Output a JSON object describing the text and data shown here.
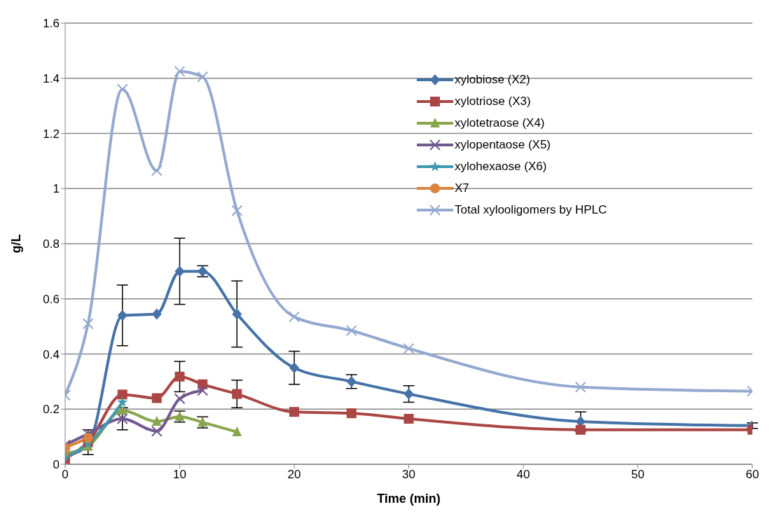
{
  "chart_data": {
    "type": "line",
    "xlabel": "Time (min)",
    "ylabel": "g/L",
    "xlim": [
      0,
      60
    ],
    "xticks": [
      0,
      10,
      20,
      30,
      40,
      50,
      60
    ],
    "ylim": [
      0,
      1.6
    ],
    "yticks": [
      0,
      0.2,
      0.4,
      0.6,
      0.8,
      1,
      1.2,
      1.4,
      1.6
    ],
    "grid": "y",
    "legend": "top right",
    "series": [
      {
        "name": "xylobiose (X2)",
        "color": "#4572a7",
        "marker": "diamond",
        "x": [
          0,
          2,
          5,
          8,
          10,
          12,
          15,
          20,
          25,
          30,
          45,
          60
        ],
        "values": [
          0.03,
          0.07,
          0.54,
          0.545,
          0.7,
          0.7,
          0.545,
          0.35,
          0.3,
          0.255,
          0.155,
          0.14
        ],
        "errors": [
          null,
          null,
          0.11,
          null,
          0.12,
          0.02,
          0.12,
          0.06,
          0.025,
          0.03,
          0.035,
          0.01
        ]
      },
      {
        "name": "xylotriose (X3)",
        "color": "#aa4643",
        "marker": "square",
        "x": [
          0,
          2,
          5,
          8,
          10,
          12,
          15,
          20,
          25,
          30,
          45,
          60
        ],
        "values": [
          0.02,
          0.08,
          0.253,
          0.24,
          0.318,
          0.29,
          0.255,
          0.19,
          0.185,
          0.165,
          0.125,
          0.125
        ],
        "errors": [
          null,
          0.045,
          null,
          null,
          0.055,
          null,
          0.05,
          null,
          null,
          null,
          null,
          null
        ]
      },
      {
        "name": "xylotetraose (X4)",
        "color": "#89a54e",
        "marker": "triangle",
        "x": [
          0,
          2,
          5,
          8,
          10,
          12,
          15
        ],
        "values": [
          0.04,
          0.065,
          0.195,
          0.155,
          0.173,
          0.152,
          0.117
        ],
        "errors": [
          null,
          null,
          null,
          null,
          0.02,
          0.02,
          null
        ]
      },
      {
        "name": "xylopentaose (X5)",
        "color": "#71588f",
        "marker": "cross",
        "x": [
          0,
          2,
          5,
          8,
          10,
          12
        ],
        "values": [
          0.07,
          0.11,
          0.165,
          0.12,
          0.238,
          0.268
        ],
        "errors": [
          null,
          null,
          0.04,
          null,
          null,
          null
        ]
      },
      {
        "name": "xylohexaose (X6)",
        "color": "#4198af",
        "marker": "star",
        "x": [
          0,
          2,
          5
        ],
        "values": [
          0.025,
          0.075,
          0.225
        ]
      },
      {
        "name": "X7",
        "color": "#db843d",
        "marker": "circle",
        "x": [
          0,
          2
        ],
        "values": [
          0.06,
          0.095
        ]
      },
      {
        "name": "Total xylooligomers by HPLC",
        "color": "#93a9cf",
        "marker": "cross",
        "x": [
          0,
          2,
          5,
          8,
          10,
          12,
          15,
          20,
          25,
          30,
          45,
          60
        ],
        "values": [
          0.25,
          0.51,
          1.36,
          1.065,
          1.425,
          1.405,
          0.92,
          0.535,
          0.485,
          0.42,
          0.28,
          0.265
        ]
      }
    ]
  }
}
